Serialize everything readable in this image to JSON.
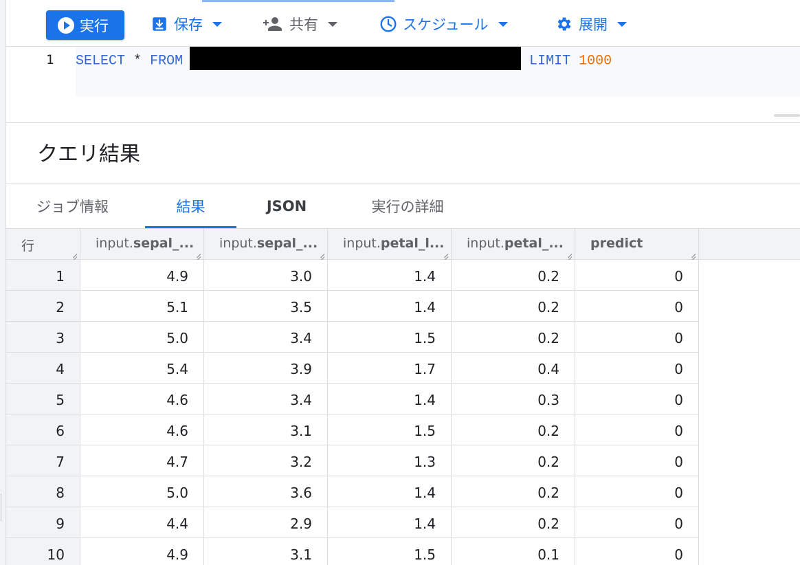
{
  "toolbar": {
    "run_label": "実行",
    "save_label": "保存",
    "share_label": "共有",
    "schedule_label": "スケジュール",
    "deploy_label": "展開"
  },
  "editor": {
    "line_number": "1",
    "select_keyword": "SELECT",
    "star": "*",
    "from_keyword": "FROM",
    "limit_keyword": "LIMIT",
    "limit_value": "1000"
  },
  "results": {
    "title": "クエリ結果",
    "tabs": [
      "ジョブ情報",
      "結果",
      "JSON",
      "実行の詳細"
    ],
    "active_tab": "結果"
  },
  "table": {
    "row_header": "行",
    "columns": [
      {
        "prefix": "input.",
        "name": "sepal_..."
      },
      {
        "prefix": "input.",
        "name": "sepal_..."
      },
      {
        "prefix": "input.",
        "name": "petal_l..."
      },
      {
        "prefix": "input.",
        "name": "petal_..."
      },
      {
        "prefix": "",
        "name": "predict"
      }
    ],
    "rows": [
      [
        "1",
        "4.9",
        "3.0",
        "1.4",
        "0.2",
        "0"
      ],
      [
        "2",
        "5.1",
        "3.5",
        "1.4",
        "0.2",
        "0"
      ],
      [
        "3",
        "5.0",
        "3.4",
        "1.5",
        "0.2",
        "0"
      ],
      [
        "4",
        "5.4",
        "3.9",
        "1.7",
        "0.4",
        "0"
      ],
      [
        "5",
        "4.6",
        "3.4",
        "1.4",
        "0.3",
        "0"
      ],
      [
        "6",
        "4.6",
        "3.1",
        "1.5",
        "0.2",
        "0"
      ],
      [
        "7",
        "4.7",
        "3.2",
        "1.3",
        "0.2",
        "0"
      ],
      [
        "8",
        "5.0",
        "3.6",
        "1.4",
        "0.2",
        "0"
      ],
      [
        "9",
        "4.4",
        "2.9",
        "1.4",
        "0.2",
        "0"
      ],
      [
        "10",
        "4.9",
        "3.1",
        "1.5",
        "0.1",
        "0"
      ]
    ]
  },
  "colors": {
    "accent": "#1a73e8",
    "keyword": "#3367d6",
    "number": "#e8710a"
  }
}
